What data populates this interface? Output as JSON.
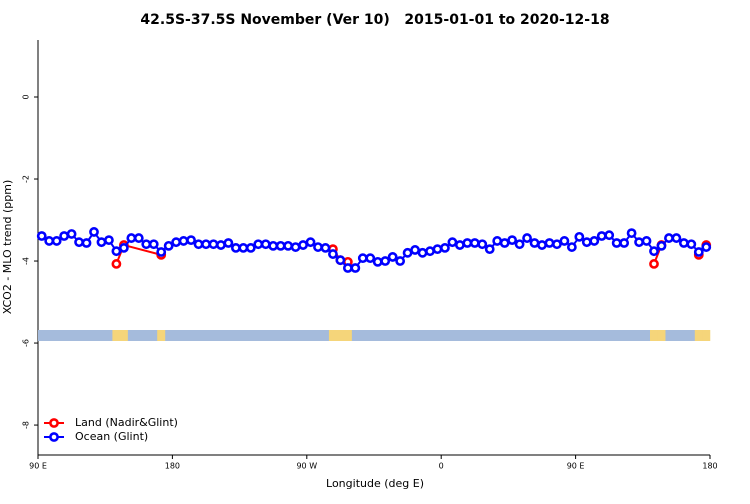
{
  "chart_data": {
    "type": "line",
    "title": "42.5S-37.5S November (Ver 10)   2015-01-01 to 2020-12-18",
    "xlabel": "Longitude (deg E)",
    "ylabel": "XCO2 - MLO trend (ppm)",
    "xlim": [
      90,
      540
    ],
    "ylim": [
      -8.73,
      1.39
    ],
    "xticks": [
      {
        "value": 90,
        "label": "90 E"
      },
      180,
      {
        "value": 270,
        "label": "90 W"
      },
      {
        "value": 360,
        "label": "0"
      },
      {
        "value": 450,
        "label": "90 E"
      },
      {
        "value": 540,
        "label": "180"
      }
    ],
    "yticks": [
      0,
      -2,
      -4,
      -6,
      -8
    ],
    "legend": "bottom-left",
    "series": [
      {
        "name": "Land (Nadir&Glint)",
        "color": "#ff0000",
        "x": [
          142.5,
          147.5,
          172.5,
          null,
          287.5,
          292.5,
          297.5,
          null,
          502.5,
          507.5,
          null,
          532.5,
          537.5
        ],
        "values": [
          -4.07,
          -3.61,
          -3.85,
          null,
          -3.71,
          -3.98,
          -4.02,
          null,
          -4.07,
          -3.61,
          null,
          -3.85,
          -3.61
        ]
      },
      {
        "name": "Ocean (Glint)",
        "color": "#0000ff",
        "x": [
          92.5,
          97.5,
          102.5,
          107.5,
          112.5,
          117.5,
          122.5,
          127.5,
          132.5,
          137.5,
          142.5,
          147.5,
          152.5,
          157.5,
          162.5,
          167.5,
          172.5,
          177.5,
          182.5,
          187.5,
          192.5,
          197.5,
          202.5,
          207.5,
          212.5,
          217.5,
          222.5,
          227.5,
          232.5,
          237.5,
          242.5,
          247.5,
          252.5,
          257.5,
          262.5,
          267.5,
          272.5,
          277.5,
          282.5,
          287.5,
          292.5,
          297.5,
          302.5,
          307.5,
          312.5,
          317.5,
          322.5,
          327.5,
          332.5,
          337.5,
          342.5,
          347.5,
          352.5,
          357.5,
          362.5,
          367.5,
          372.5,
          377.5,
          382.5,
          387.5,
          392.5,
          397.5,
          402.5,
          407.5,
          412.5,
          417.5,
          422.5,
          427.5,
          432.5,
          437.5,
          442.5,
          447.5,
          452.5,
          457.5,
          462.5,
          467.5,
          472.5,
          477.5,
          482.5,
          487.5,
          492.5,
          497.5,
          502.5,
          507.5,
          512.5,
          517.5,
          522.5,
          527.5,
          532.5,
          537.5
        ],
        "values": [
          -3.39,
          -3.51,
          -3.51,
          -3.39,
          -3.34,
          -3.54,
          -3.56,
          -3.29,
          -3.54,
          -3.49,
          -3.76,
          -3.68,
          -3.44,
          -3.44,
          -3.59,
          -3.59,
          -3.78,
          -3.63,
          -3.54,
          -3.51,
          -3.49,
          -3.59,
          -3.59,
          -3.59,
          -3.61,
          -3.56,
          -3.68,
          -3.68,
          -3.68,
          -3.59,
          -3.59,
          -3.63,
          -3.63,
          -3.63,
          -3.66,
          -3.61,
          -3.54,
          -3.66,
          -3.68,
          -3.83,
          -3.98,
          -4.17,
          -4.17,
          -3.93,
          -3.93,
          -4.02,
          -4.0,
          -3.9,
          -4.0,
          -3.8,
          -3.73,
          -3.8,
          -3.76,
          -3.71,
          -3.68,
          -3.54,
          -3.61,
          -3.56,
          -3.56,
          -3.59,
          -3.71,
          -3.51,
          -3.56,
          -3.49,
          -3.59,
          -3.44,
          -3.56,
          -3.61,
          -3.56,
          -3.59,
          -3.51,
          -3.66,
          -3.41,
          -3.54,
          -3.51,
          -3.39,
          -3.37,
          -3.56,
          -3.56,
          -3.32,
          -3.54,
          -3.51,
          -3.76,
          -3.63,
          -3.44,
          -3.44,
          -3.56,
          -3.59,
          -3.78,
          -3.66
        ]
      }
    ]
  }
}
